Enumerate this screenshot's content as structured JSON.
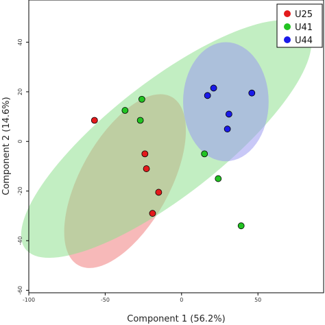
{
  "chart_data": {
    "type": "scatter",
    "xlabel": "Component 1 (56.2%)",
    "ylabel": "Component 2 (14.6%)",
    "xlim": [
      -100,
      93
    ],
    "ylim": [
      -61,
      57
    ],
    "x_ticks": [
      -100,
      -50,
      0,
      50
    ],
    "y_ticks": [
      -60,
      -40,
      -20,
      0,
      20,
      40
    ],
    "grid": false,
    "legend_position": "top-right",
    "series": [
      {
        "name": "U25",
        "color": "#e31a1c",
        "ellipse_color": "#f08080",
        "points": [
          {
            "x": -57,
            "y": 8.5
          },
          {
            "x": -24,
            "y": -5
          },
          {
            "x": -23,
            "y": -11
          },
          {
            "x": -15,
            "y": -20.5
          },
          {
            "x": -19,
            "y": -29
          }
        ],
        "ellipse": {
          "cx": -37,
          "cy": -16,
          "rx": 63,
          "ry": 18,
          "angle_deg": -61
        }
      },
      {
        "name": "U41",
        "color": "#22c322",
        "ellipse_color": "#8fe08f",
        "points": [
          {
            "x": -37,
            "y": 12.5
          },
          {
            "x": -26,
            "y": 17
          },
          {
            "x": -27,
            "y": 8.5
          },
          {
            "x": 15,
            "y": -5
          },
          {
            "x": 24,
            "y": -15
          },
          {
            "x": 39,
            "y": -34
          }
        ],
        "ellipse": {
          "cx": -10,
          "cy": 1,
          "rx": 117,
          "ry": 23,
          "angle_deg": -38
        }
      },
      {
        "name": "U44",
        "color": "#1a1ae8",
        "ellipse_color": "#9a9af0",
        "points": [
          {
            "x": 17,
            "y": 18.5
          },
          {
            "x": 21,
            "y": 21.5
          },
          {
            "x": 46,
            "y": 19.5
          },
          {
            "x": 31,
            "y": 11
          },
          {
            "x": 30,
            "y": 5
          }
        ],
        "ellipse": {
          "cx": 29,
          "cy": 16,
          "rx": 28,
          "ry": 24,
          "angle_deg": 0
        }
      }
    ]
  }
}
